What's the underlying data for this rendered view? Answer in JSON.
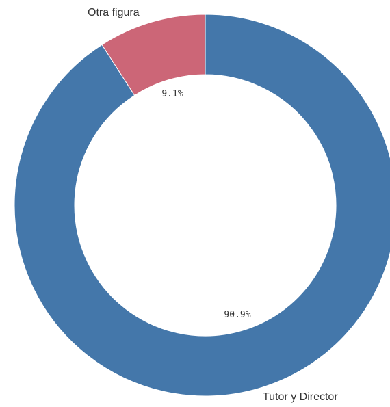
{
  "chart_data": {
    "type": "pie",
    "donut": true,
    "categories": [
      "Tutor y Director",
      "Otra figura"
    ],
    "values": [
      90.9,
      9.1
    ],
    "data_labels": [
      "90.9%",
      "9.1%"
    ],
    "colors": [
      "#4477aa",
      "#cc6677"
    ],
    "title": "",
    "legend": false
  }
}
